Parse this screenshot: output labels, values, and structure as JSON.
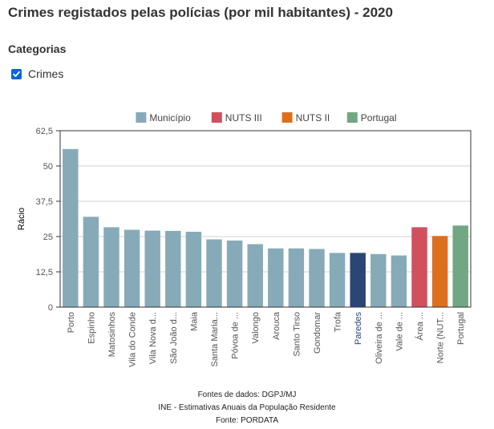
{
  "page": {
    "title": "Crimes registados pelas polícias (por mil habitantes) - 2020",
    "categories_title": "Categorias",
    "category_label": "Crimes",
    "category_checked": true
  },
  "colors": {
    "municipio": "#87aab9",
    "nuts3": "#d0505e",
    "nuts2": "#dc6f1e",
    "portugal": "#72a784",
    "highlight": "#2b4576"
  },
  "chart_data": {
    "type": "bar",
    "ylabel": "Rácio",
    "ylim": [
      0,
      62.5
    ],
    "yticks": [
      "0",
      "12,5",
      "25",
      "37,5",
      "50",
      "62,5"
    ],
    "ytick_values": [
      0,
      12.5,
      25,
      37.5,
      50,
      62.5
    ],
    "legend": [
      {
        "name": "Município",
        "color": "#87aab9"
      },
      {
        "name": "NUTS III",
        "color": "#d0505e"
      },
      {
        "name": "NUTS II",
        "color": "#dc6f1e"
      },
      {
        "name": "Portugal",
        "color": "#72a784"
      }
    ],
    "categories": [
      "Porto",
      "Espinho",
      "Matosinhos",
      "Vila do Conde",
      "Vila Nova d...",
      "São João d...",
      "Maia",
      "Santa Maria...",
      "Póvoa de ...",
      "Valongo",
      "Arouca",
      "Santo Tirso",
      "Gondomar",
      "Trofa",
      "Paredes",
      "Oliveira de ...",
      "Vale de ...",
      "Área ...",
      "Norte (NUT...",
      "Portugal"
    ],
    "values": [
      56.0,
      32.0,
      28.3,
      27.4,
      27.1,
      27.0,
      26.7,
      24.0,
      23.6,
      22.3,
      20.8,
      20.8,
      20.6,
      19.2,
      19.2,
      18.8,
      18.3,
      28.3,
      25.2,
      28.9
    ],
    "groups": [
      "municipio",
      "municipio",
      "municipio",
      "municipio",
      "municipio",
      "municipio",
      "municipio",
      "municipio",
      "municipio",
      "municipio",
      "municipio",
      "municipio",
      "municipio",
      "municipio",
      "highlight",
      "municipio",
      "municipio",
      "nuts3",
      "nuts2",
      "portugal"
    ],
    "grid": true
  },
  "footer": {
    "line1": "Fontes de dados: DGPJ/MJ",
    "line2": "INE - Estimativas Anuais da População Residente",
    "line3": "Fonte: PORDATA"
  }
}
